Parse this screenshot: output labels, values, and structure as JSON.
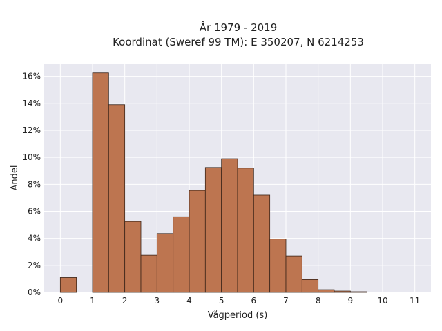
{
  "chart_data": {
    "type": "bar",
    "title_line1": "År 1979 - 2019",
    "title_line2": "Koordinat (Sweref 99 TM): E 350207, N 6214253",
    "xlabel": "Vågperiod (s)",
    "ylabel": "Andel",
    "xlim": [
      -0.5,
      11.5
    ],
    "ylim": [
      0,
      16.9
    ],
    "x_ticks": [
      0,
      1,
      2,
      3,
      4,
      5,
      6,
      7,
      8,
      9,
      10,
      11
    ],
    "x_tick_labels": [
      "0",
      "1",
      "2",
      "3",
      "4",
      "5",
      "6",
      "7",
      "8",
      "9",
      "10",
      "11"
    ],
    "y_ticks": [
      0,
      2,
      4,
      6,
      8,
      10,
      12,
      14,
      16
    ],
    "y_tick_labels": [
      "0%",
      "2%",
      "4%",
      "6%",
      "8%",
      "10%",
      "12%",
      "14%",
      "16%"
    ],
    "bin_width": 0.5,
    "bins": [
      {
        "start": 0.0,
        "value": 1.1
      },
      {
        "start": 1.0,
        "value": 16.25
      },
      {
        "start": 1.5,
        "value": 13.9
      },
      {
        "start": 2.0,
        "value": 5.25
      },
      {
        "start": 2.5,
        "value": 2.75
      },
      {
        "start": 3.0,
        "value": 4.35
      },
      {
        "start": 3.5,
        "value": 5.6
      },
      {
        "start": 4.0,
        "value": 7.55
      },
      {
        "start": 4.5,
        "value": 9.25
      },
      {
        "start": 5.0,
        "value": 9.9
      },
      {
        "start": 5.5,
        "value": 9.2
      },
      {
        "start": 6.0,
        "value": 7.2
      },
      {
        "start": 6.5,
        "value": 3.95
      },
      {
        "start": 7.0,
        "value": 2.7
      },
      {
        "start": 7.5,
        "value": 0.95
      },
      {
        "start": 8.0,
        "value": 0.2
      },
      {
        "start": 8.5,
        "value": 0.1
      },
      {
        "start": 9.0,
        "value": 0.05
      }
    ],
    "grid": true,
    "colors": {
      "bar_fill": "#bd7550",
      "bar_stroke": "#3a2418",
      "plot_background": "#e8e8f0",
      "grid": "#ffffff"
    }
  }
}
